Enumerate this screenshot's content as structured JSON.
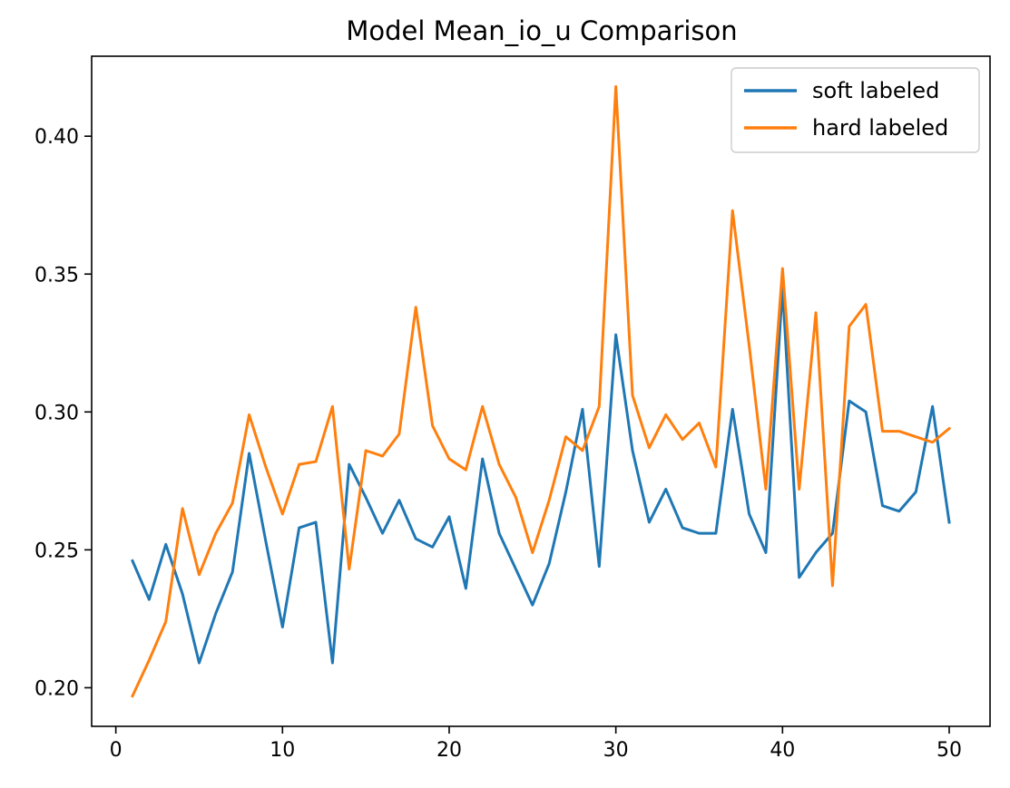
{
  "chart_data": {
    "type": "line",
    "title": "Model Mean_io_u Comparison",
    "xlabel": "",
    "ylabel": "",
    "xlim": [
      -1.45,
      52.45
    ],
    "ylim": [
      0.186,
      0.429
    ],
    "xticks": [
      0,
      10,
      20,
      30,
      40,
      50
    ],
    "yticks": [
      0.2,
      0.25,
      0.3,
      0.35,
      0.4
    ],
    "xtick_labels": [
      "0",
      "10",
      "20",
      "30",
      "40",
      "50"
    ],
    "ytick_labels": [
      "0.20",
      "0.25",
      "0.30",
      "0.35",
      "0.40"
    ],
    "legend_position": "top-right",
    "grid": false,
    "x": [
      1,
      2,
      3,
      4,
      5,
      6,
      7,
      8,
      9,
      10,
      11,
      12,
      13,
      14,
      15,
      16,
      17,
      18,
      19,
      20,
      21,
      22,
      23,
      24,
      25,
      26,
      27,
      28,
      29,
      30,
      31,
      32,
      33,
      34,
      35,
      36,
      37,
      38,
      39,
      40,
      41,
      42,
      43,
      44,
      45,
      46,
      47,
      48,
      49,
      50
    ],
    "series": [
      {
        "name": "soft labeled",
        "color": "#1f77b4",
        "values": [
          0.246,
          0.232,
          0.252,
          0.234,
          0.209,
          0.227,
          0.242,
          0.285,
          0.253,
          0.222,
          0.258,
          0.26,
          0.209,
          0.281,
          0.269,
          0.256,
          0.268,
          0.254,
          0.251,
          0.262,
          0.236,
          0.283,
          0.256,
          0.243,
          0.23,
          0.245,
          0.271,
          0.301,
          0.244,
          0.328,
          0.286,
          0.26,
          0.272,
          0.258,
          0.256,
          0.256,
          0.301,
          0.263,
          0.249,
          0.345,
          0.24,
          0.249,
          0.256,
          0.304,
          0.3,
          0.266,
          0.264,
          0.271,
          0.302,
          0.26
        ]
      },
      {
        "name": "hard labeled",
        "color": "#ff7f0e",
        "values": [
          0.197,
          0.21,
          0.224,
          0.265,
          0.241,
          0.256,
          0.267,
          0.299,
          0.28,
          0.263,
          0.281,
          0.282,
          0.302,
          0.243,
          0.286,
          0.284,
          0.292,
          0.338,
          0.295,
          0.283,
          0.279,
          0.302,
          0.281,
          0.269,
          0.249,
          0.268,
          0.291,
          0.286,
          0.302,
          0.418,
          0.306,
          0.287,
          0.299,
          0.29,
          0.296,
          0.28,
          0.373,
          0.324,
          0.272,
          0.352,
          0.272,
          0.336,
          0.237,
          0.331,
          0.339,
          0.293,
          0.293,
          0.291,
          0.289,
          0.294
        ]
      }
    ]
  }
}
